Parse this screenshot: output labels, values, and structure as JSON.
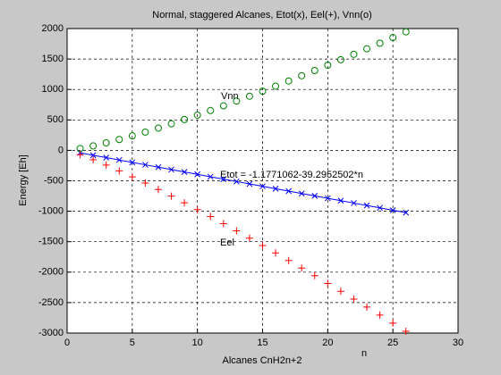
{
  "chart_data": {
    "type": "line",
    "title": "Normal, staggered Alcanes, Etot(x), Eel(+), Vnn(o)",
    "xlabel": "Alcanes CnH2n+2",
    "ylabel": "Energy [Eh]",
    "x": [
      1,
      2,
      3,
      4,
      5,
      6,
      7,
      8,
      9,
      10,
      11,
      12,
      13,
      14,
      15,
      16,
      17,
      18,
      19,
      20,
      21,
      22,
      23,
      24,
      25,
      26
    ],
    "series": [
      {
        "name": "Etot",
        "color": "#0000ff",
        "marker": "x",
        "line": true,
        "values": [
          -40.5,
          -79.8,
          -119.1,
          -158.4,
          -197.7,
          -237,
          -276.2,
          -315.5,
          -354.8,
          -394.1,
          -433.4,
          -472.7,
          -512,
          -551.3,
          -590.6,
          -629.9,
          -669.2,
          -708.5,
          -747.8,
          -787.1,
          -826.4,
          -865.7,
          -905,
          -944.3,
          -983.6,
          -1022.9
        ]
      },
      {
        "name": "Vnn",
        "color": "#008000",
        "marker": "o",
        "line": false,
        "values": [
          30,
          73,
          123,
          178,
          238,
          300,
          366,
          436,
          506,
          578,
          654,
          731,
          810,
          890,
          972,
          1055,
          1139,
          1225,
          1311,
          1399,
          1488,
          1577,
          1668,
          1760,
          1853,
          1947
        ]
      },
      {
        "name": "Eel",
        "color": "#ff0000",
        "marker": "+",
        "line": false,
        "values": [
          -70.5,
          -152.8,
          -242.1,
          -336.4,
          -435.7,
          -537,
          -642.2,
          -751.5,
          -860.8,
          -972.1,
          -1087.4,
          -1203.7,
          -1322,
          -1441.3,
          -1562.6,
          -1684.9,
          -1808.2,
          -1933.5,
          -2058.8,
          -2186.1,
          -2314.4,
          -2442.7,
          -2573,
          -2704.3,
          -2836.6,
          -2969.9
        ]
      }
    ],
    "annotations": [
      "Vnn",
      "Etot = -1.1771062-39.2952502*n",
      "Eel",
      "n"
    ],
    "xlim": [
      0,
      30
    ],
    "xticks": [
      0,
      5,
      10,
      15,
      20,
      25,
      30
    ],
    "ylim": [
      -3000,
      2000
    ],
    "yticks": [
      -3000,
      -2500,
      -2000,
      -1500,
      -1000,
      -500,
      0,
      500,
      1000,
      1500,
      2000
    ],
    "grid": true
  }
}
